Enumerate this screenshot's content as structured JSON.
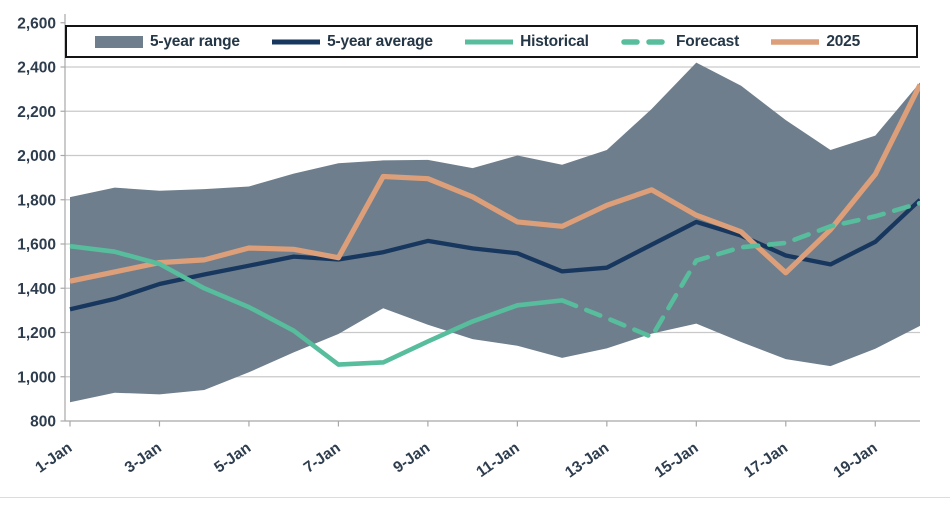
{
  "chart_data": {
    "type": "line",
    "title": "",
    "grid": true,
    "legend_position": "top",
    "x_tick_labels": [
      "1-Jan",
      "3-Jan",
      "5-Jan",
      "7-Jan",
      "9-Jan",
      "11-Jan",
      "13-Jan",
      "15-Jan",
      "17-Jan",
      "19-Jan"
    ],
    "x_tick_days": [
      1,
      3,
      5,
      7,
      9,
      11,
      13,
      15,
      17,
      19
    ],
    "y_ticks": [
      800,
      1000,
      1200,
      1400,
      1600,
      1800,
      2000,
      2200,
      2400,
      2600
    ],
    "y_tick_labels": [
      "800",
      "1,000",
      "1,200",
      "1,400",
      "1,600",
      "1,800",
      "2,000",
      "2,200",
      "2,400",
      "2,600"
    ],
    "ylim": [
      800,
      2600
    ],
    "days": [
      1,
      2,
      3,
      4,
      5,
      6,
      7,
      8,
      9,
      10,
      11,
      12,
      13,
      14,
      15,
      16,
      17,
      18,
      19,
      20
    ],
    "series": [
      {
        "name": "5-year range",
        "type": "band",
        "color": "#6E7E8C",
        "upper": [
          1812,
          1855,
          1841,
          1848,
          1860,
          1918,
          1965,
          1978,
          1980,
          1943,
          2000,
          1958,
          2025,
          2210,
          2420,
          2315,
          2160,
          2025,
          2090,
          2330
        ],
        "lower": [
          885,
          928,
          920,
          940,
          1020,
          1110,
          1193,
          1310,
          1235,
          1170,
          1140,
          1085,
          1128,
          1195,
          1240,
          1157,
          1080,
          1048,
          1127,
          1230
        ]
      },
      {
        "name": "5-year average",
        "type": "line",
        "color": "#17375E",
        "values": [
          1305,
          1352,
          1419,
          1462,
          1502,
          1543,
          1530,
          1563,
          1614,
          1580,
          1558,
          1476,
          1493,
          1597,
          1700,
          1638,
          1548,
          1508,
          1610,
          1800
        ]
      },
      {
        "name": "Historical",
        "type": "line",
        "color": "#57BD9C",
        "days": [
          1,
          2,
          3,
          4,
          5,
          6,
          7,
          8,
          9,
          10,
          11,
          12
        ],
        "values": [
          1590,
          1565,
          1510,
          1400,
          1315,
          1208,
          1055,
          1065,
          1160,
          1250,
          1323,
          1345
        ]
      },
      {
        "name": "Forecast",
        "type": "line-dashed",
        "color": "#57BD9C",
        "days": [
          12,
          13,
          14,
          15,
          16,
          17,
          18,
          19,
          20
        ],
        "values": [
          1345,
          1265,
          1180,
          1525,
          1585,
          1605,
          1680,
          1725,
          1785
        ]
      },
      {
        "name": "2025",
        "type": "line",
        "color": "#DC9F79",
        "values": [
          1432,
          1474,
          1516,
          1528,
          1582,
          1576,
          1538,
          1905,
          1895,
          1813,
          1700,
          1680,
          1775,
          1845,
          1730,
          1655,
          1470,
          1665,
          1915,
          2320
        ]
      }
    ],
    "colors": {
      "band": "#6E7E8C",
      "average_line": "#17375E",
      "historical_line": "#57BD9C",
      "forecast_line": "#57BD9C",
      "line_2025": "#DC9F79",
      "gridline": "#C9C9C9",
      "axis": "#A8A8A8",
      "tick_label": "#2E3D4E",
      "legend_text": "#253746"
    }
  },
  "legend": {
    "items": [
      {
        "label": "5-year range"
      },
      {
        "label": "5-year average"
      },
      {
        "label": "Historical"
      },
      {
        "label": "Forecast"
      },
      {
        "label": "2025"
      }
    ]
  }
}
